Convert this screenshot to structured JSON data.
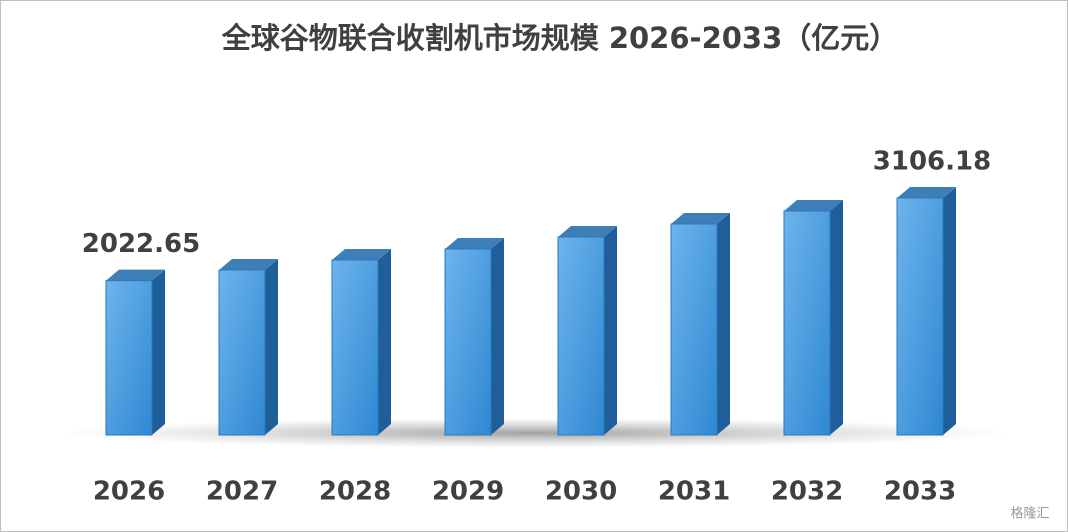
{
  "chart_data": {
    "type": "bar3d",
    "title": "全球谷物联合收割机市场规模 2026-2033（亿元）",
    "categories": [
      "2026",
      "2027",
      "2028",
      "2029",
      "2030",
      "2031",
      "2032",
      "2033"
    ],
    "values": [
      2022.65,
      2163,
      2294,
      2438,
      2595,
      2766,
      2936,
      3106.18
    ],
    "value_labels": [
      "2022.65",
      null,
      null,
      null,
      null,
      null,
      null,
      "3106.18"
    ],
    "color": "#3d95dc"
  },
  "watermark": "格隆汇"
}
